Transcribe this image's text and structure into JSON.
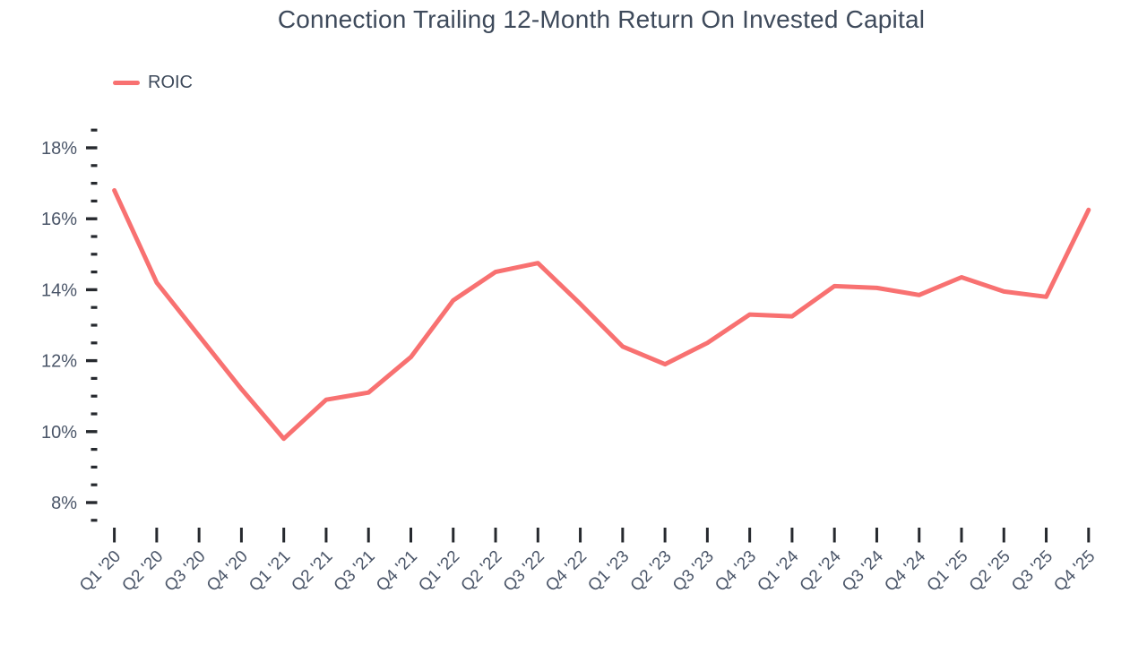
{
  "title": "Connection Trailing 12-Month Return On Invested Capital",
  "legend": [
    {
      "label": "ROIC",
      "color": "#F87171"
    }
  ],
  "colors": {
    "line": "#F87171",
    "title_text": "#3E4A5B",
    "axis_label_text": "#4A5568",
    "tick_mark": "#26292E",
    "background": "#FFFFFF"
  },
  "chart_data": {
    "type": "line",
    "title": "Connection Trailing 12-Month Return On Invested Capital",
    "legend_position": "top-left",
    "grid": false,
    "categories": [
      "Q1 '20",
      "Q2 '20",
      "Q3 '20",
      "Q4 '20",
      "Q1 '21",
      "Q2 '21",
      "Q3 '21",
      "Q4 '21",
      "Q1 '22",
      "Q2 '22",
      "Q3 '22",
      "Q4 '22",
      "Q1 '23",
      "Q2 '23",
      "Q3 '23",
      "Q4 '23",
      "Q1 '24",
      "Q2 '24",
      "Q3 '24",
      "Q4 '24",
      "Q1 '25",
      "Q2 '25",
      "Q3 '25",
      "Q4 '25"
    ],
    "series": [
      {
        "name": "ROIC",
        "color": "#F87171",
        "unit": "%",
        "values": [
          16.8,
          14.2,
          12.7,
          11.2,
          9.8,
          10.9,
          11.1,
          12.1,
          13.7,
          14.5,
          14.75,
          13.6,
          12.4,
          11.9,
          12.5,
          13.3,
          13.25,
          14.1,
          14.05,
          13.85,
          14.35,
          13.95,
          13.8,
          16.25
        ]
      }
    ],
    "y_axis": {
      "tick_format": "percent",
      "major_ticks": [
        {
          "value": 18,
          "label": "18%"
        },
        {
          "value": 16,
          "label": "16%"
        },
        {
          "value": 14,
          "label": "14%"
        },
        {
          "value": 12,
          "label": "12%"
        },
        {
          "value": 10,
          "label": "10%"
        },
        {
          "value": 8,
          "label": "8%"
        }
      ],
      "minor_step": 0.5,
      "axis_top_value": 18.5,
      "axis_bottom_value": 7.5
    },
    "x_axis": {
      "tick_count": 24,
      "label_rotation_deg": -45
    }
  }
}
